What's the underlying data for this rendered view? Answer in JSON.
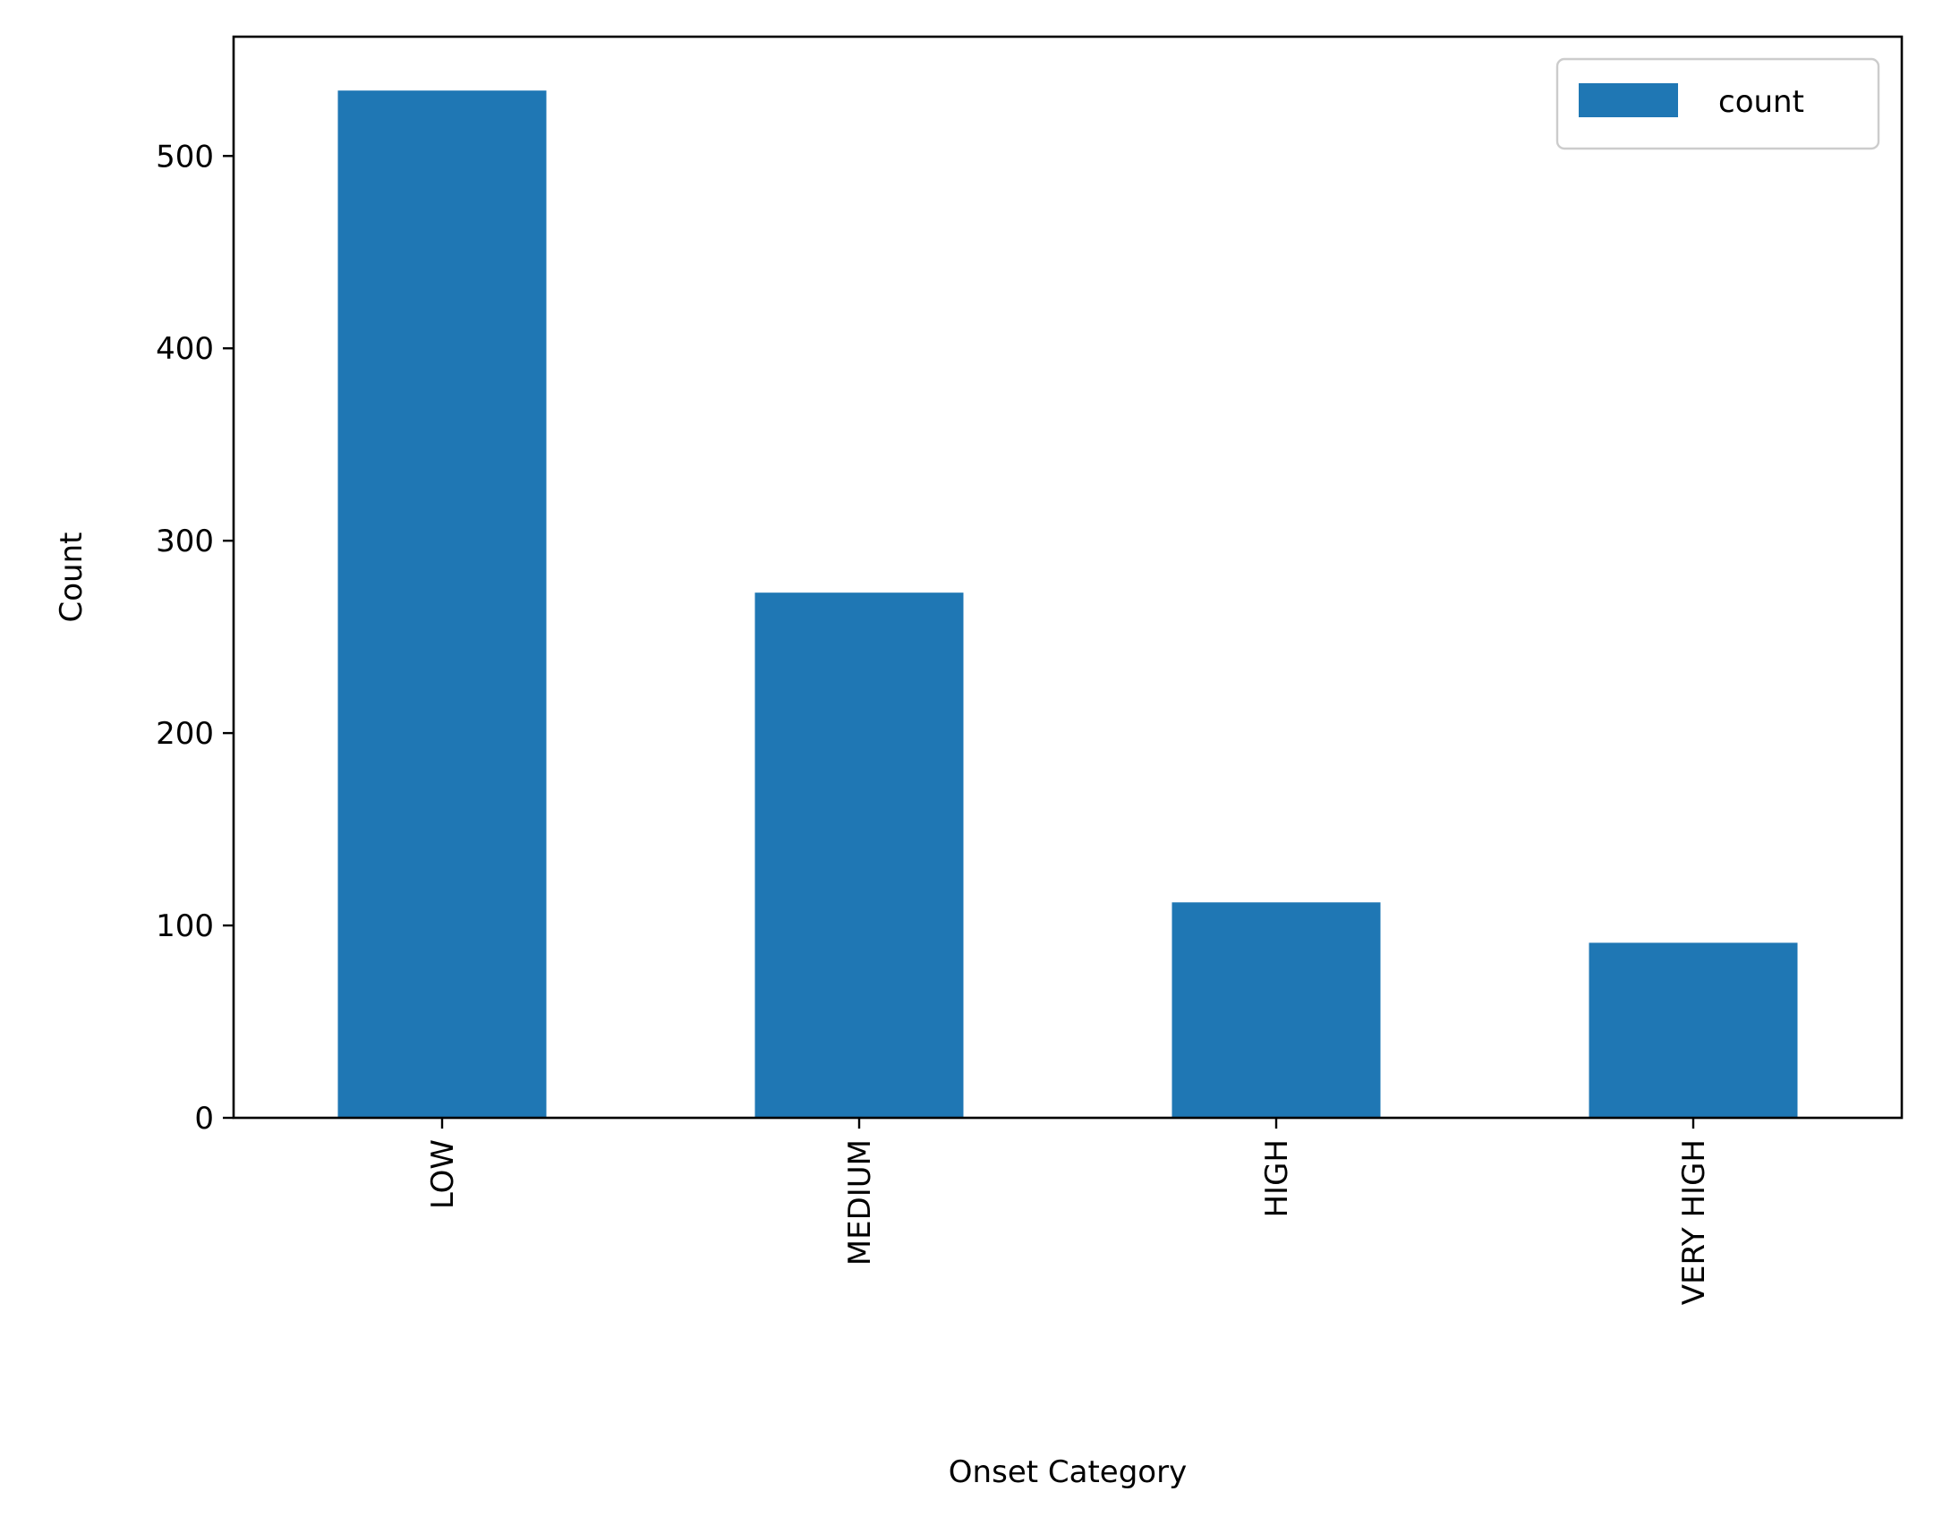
{
  "chart_data": {
    "type": "bar",
    "categories": [
      "LOW",
      "MEDIUM",
      "HIGH",
      "VERY HIGH"
    ],
    "series": [
      {
        "name": "count",
        "values": [
          534,
          273,
          112,
          91
        ]
      }
    ],
    "title": "",
    "xlabel": "Onset Category",
    "ylabel": "Count",
    "ylim": [
      0,
      562
    ],
    "yticks": [
      0,
      100,
      200,
      300,
      400,
      500
    ],
    "legend": "top-right",
    "grid": false,
    "bar_color": "#1f77b4"
  }
}
